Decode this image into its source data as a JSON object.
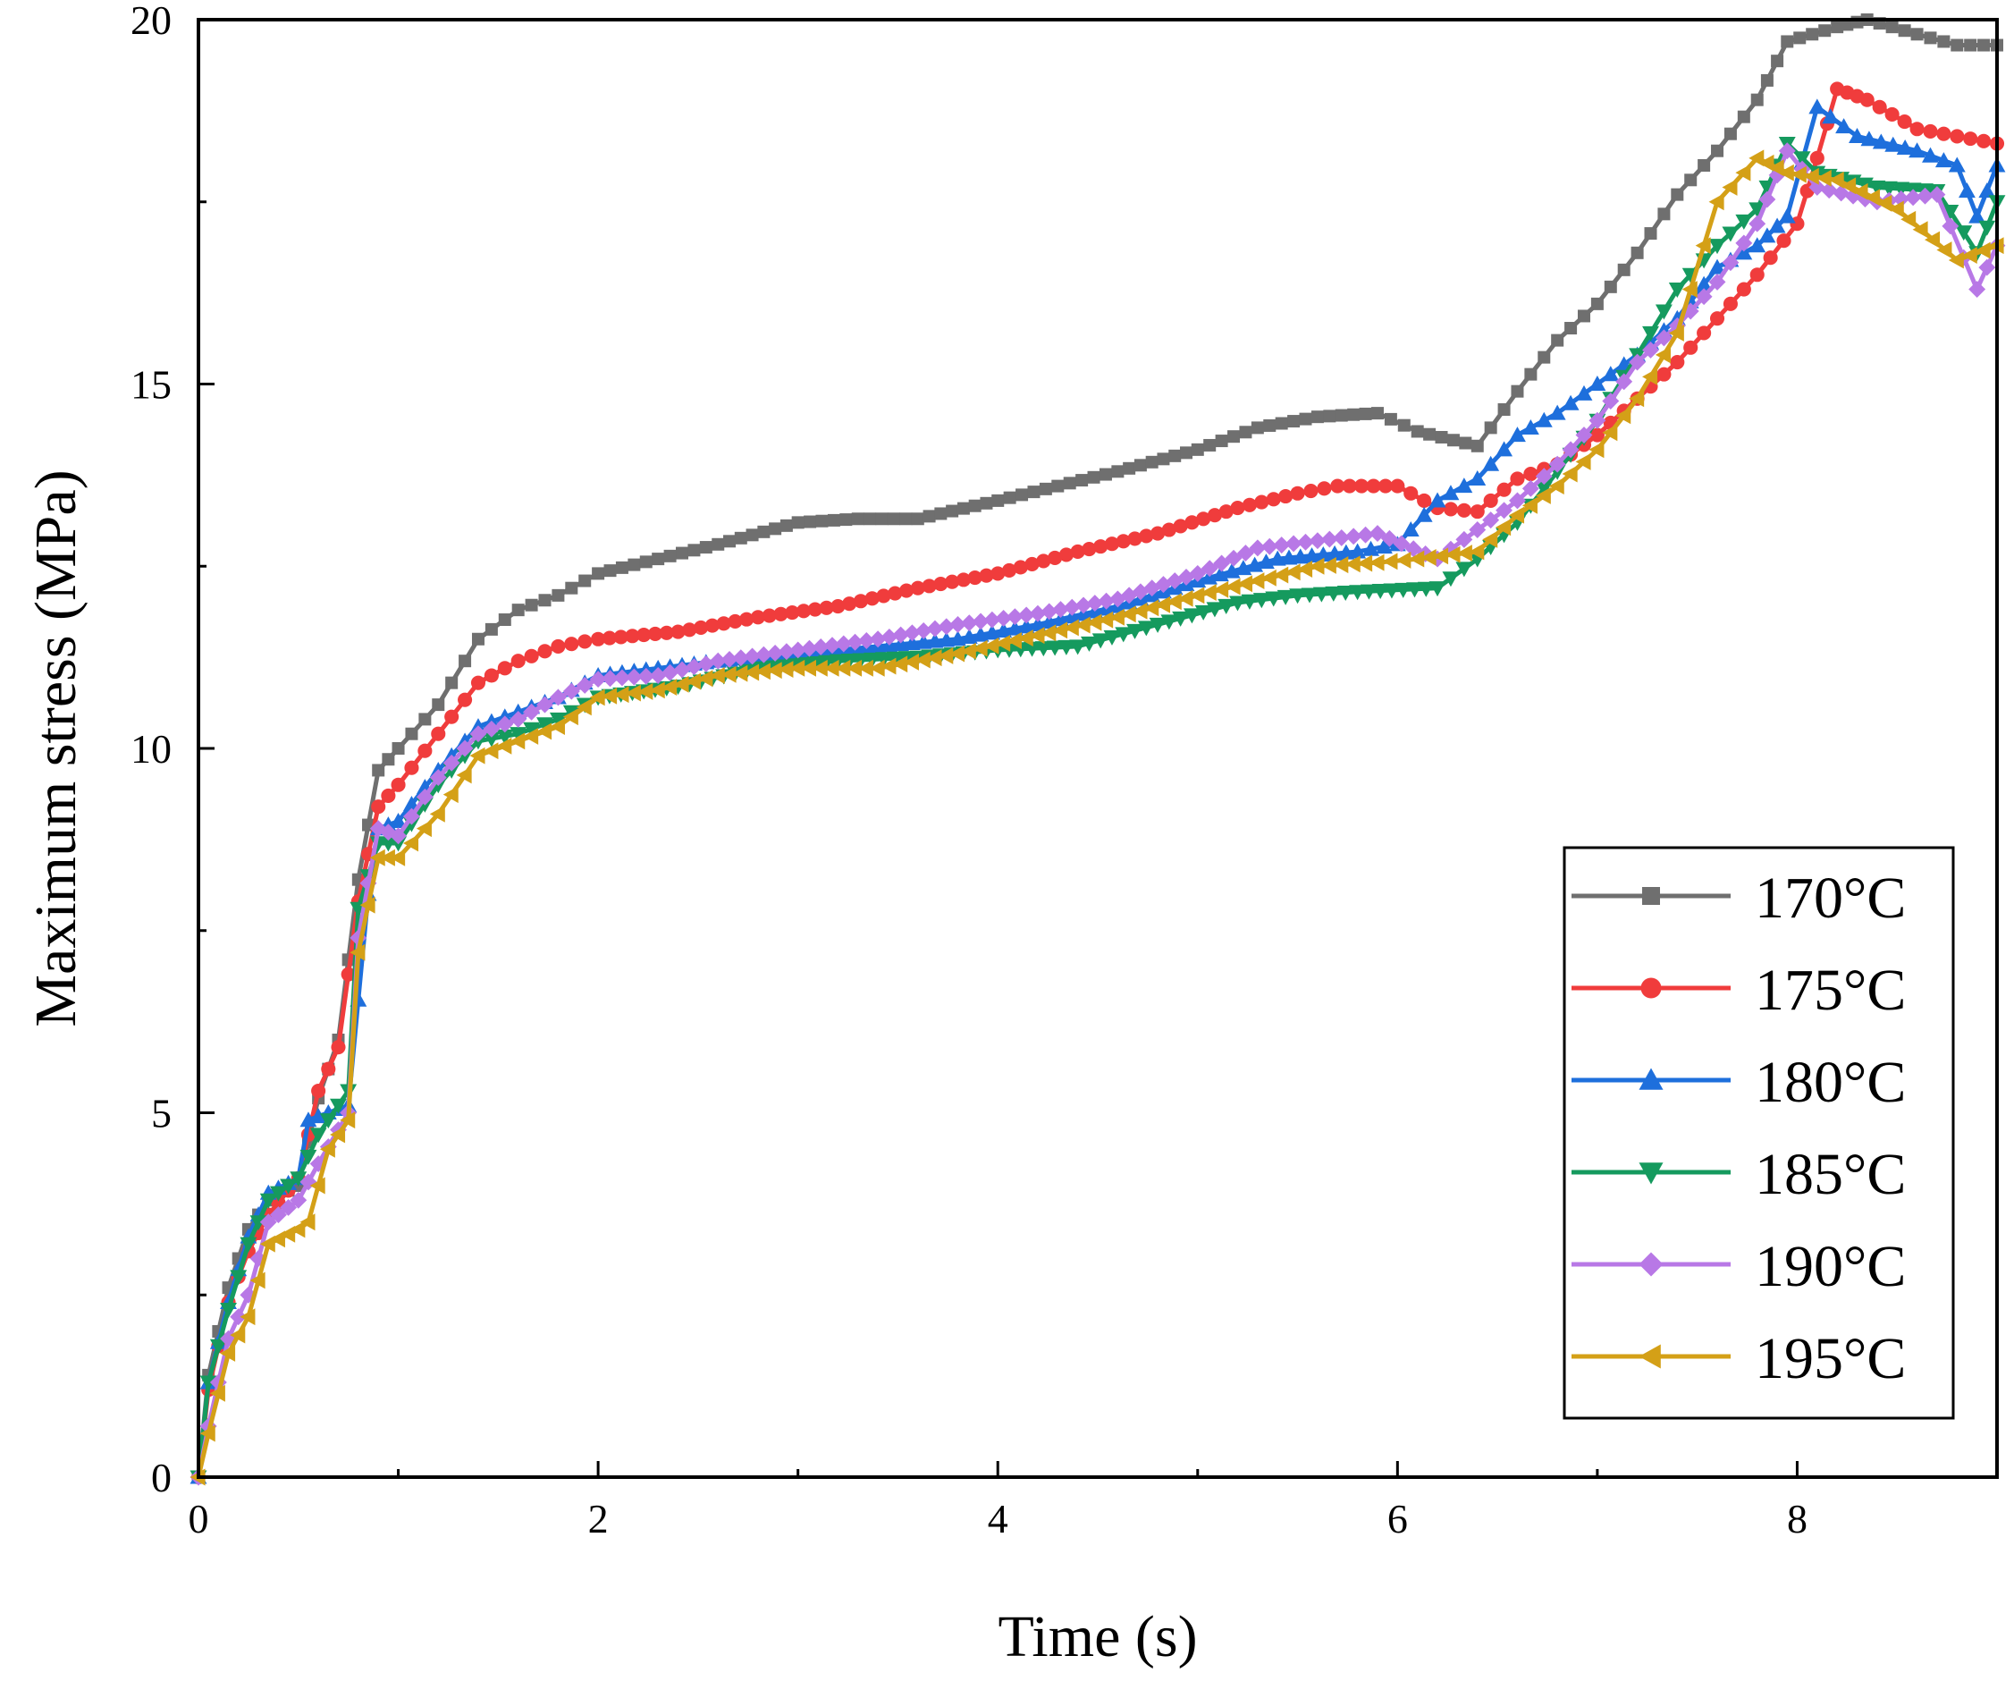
{
  "chart_data": {
    "type": "line",
    "xlabel": "Time (s)",
    "ylabel": "Maximum stress (MPa)",
    "xlim": [
      0,
      9
    ],
    "ylim": [
      0,
      20
    ],
    "xticks": [
      0,
      2,
      4,
      6,
      8
    ],
    "yticks": [
      0,
      5,
      10,
      15,
      20
    ],
    "grid": false,
    "legend_position": "bottom-right",
    "series": [
      {
        "name": "170°C",
        "color": "#6f6f6f",
        "marker": "square",
        "points": [
          [
            0,
            0
          ],
          [
            0.05,
            1.4
          ],
          [
            0.15,
            2.6
          ],
          [
            0.25,
            3.4
          ],
          [
            0.35,
            3.8
          ],
          [
            0.5,
            4.0
          ],
          [
            0.6,
            5.2
          ],
          [
            0.7,
            6.0
          ],
          [
            0.8,
            8.2
          ],
          [
            0.9,
            9.7
          ],
          [
            1.0,
            10.0
          ],
          [
            1.2,
            10.6
          ],
          [
            1.4,
            11.5
          ],
          [
            1.6,
            11.9
          ],
          [
            1.8,
            12.1
          ],
          [
            2.0,
            12.4
          ],
          [
            2.3,
            12.6
          ],
          [
            2.6,
            12.8
          ],
          [
            3.0,
            13.1
          ],
          [
            3.3,
            13.15
          ],
          [
            3.6,
            13.15
          ],
          [
            4.0,
            13.4
          ],
          [
            4.3,
            13.6
          ],
          [
            4.6,
            13.8
          ],
          [
            5.0,
            14.1
          ],
          [
            5.3,
            14.4
          ],
          [
            5.6,
            14.55
          ],
          [
            5.9,
            14.6
          ],
          [
            6.1,
            14.35
          ],
          [
            6.4,
            14.15
          ],
          [
            6.6,
            14.9
          ],
          [
            6.8,
            15.6
          ],
          [
            7.0,
            16.1
          ],
          [
            7.2,
            16.8
          ],
          [
            7.4,
            17.6
          ],
          [
            7.6,
            18.2
          ],
          [
            7.8,
            18.9
          ],
          [
            7.95,
            19.7
          ],
          [
            8.2,
            19.9
          ],
          [
            8.35,
            20.0
          ],
          [
            8.6,
            19.8
          ],
          [
            8.8,
            19.65
          ],
          [
            9.0,
            19.65
          ]
        ]
      },
      {
        "name": "175°C",
        "color": "#f03c3c",
        "marker": "circle",
        "points": [
          [
            0,
            0
          ],
          [
            0.05,
            1.2
          ],
          [
            0.15,
            2.4
          ],
          [
            0.25,
            3.1
          ],
          [
            0.35,
            3.6
          ],
          [
            0.5,
            4.1
          ],
          [
            0.6,
            5.3
          ],
          [
            0.7,
            5.9
          ],
          [
            0.8,
            7.9
          ],
          [
            0.9,
            9.2
          ],
          [
            1.0,
            9.5
          ],
          [
            1.2,
            10.2
          ],
          [
            1.4,
            10.9
          ],
          [
            1.6,
            11.2
          ],
          [
            1.8,
            11.4
          ],
          [
            2.0,
            11.5
          ],
          [
            2.4,
            11.6
          ],
          [
            2.8,
            11.8
          ],
          [
            3.2,
            11.95
          ],
          [
            3.6,
            12.2
          ],
          [
            4.0,
            12.4
          ],
          [
            4.4,
            12.7
          ],
          [
            4.8,
            12.95
          ],
          [
            5.2,
            13.3
          ],
          [
            5.5,
            13.5
          ],
          [
            5.7,
            13.6
          ],
          [
            6.0,
            13.6
          ],
          [
            6.2,
            13.3
          ],
          [
            6.4,
            13.25
          ],
          [
            6.6,
            13.7
          ],
          [
            6.8,
            13.9
          ],
          [
            7.0,
            14.3
          ],
          [
            7.2,
            14.8
          ],
          [
            7.4,
            15.3
          ],
          [
            7.6,
            15.9
          ],
          [
            7.8,
            16.5
          ],
          [
            8.0,
            17.2
          ],
          [
            8.1,
            18.1
          ],
          [
            8.2,
            19.05
          ],
          [
            8.35,
            18.9
          ],
          [
            8.6,
            18.5
          ],
          [
            8.8,
            18.4
          ],
          [
            9.0,
            18.3
          ]
        ]
      },
      {
        "name": "180°C",
        "color": "#1e6fdc",
        "marker": "triangle-up",
        "points": [
          [
            0,
            0
          ],
          [
            0.05,
            1.3
          ],
          [
            0.15,
            2.4
          ],
          [
            0.25,
            3.3
          ],
          [
            0.35,
            3.9
          ],
          [
            0.5,
            4.1
          ],
          [
            0.55,
            4.9
          ],
          [
            0.65,
            5.0
          ],
          [
            0.75,
            5.1
          ],
          [
            0.85,
            8.0
          ],
          [
            0.9,
            8.9
          ],
          [
            1.0,
            9.0
          ],
          [
            1.2,
            9.7
          ],
          [
            1.4,
            10.3
          ],
          [
            1.6,
            10.5
          ],
          [
            1.8,
            10.7
          ],
          [
            2.0,
            11.0
          ],
          [
            2.3,
            11.1
          ],
          [
            2.6,
            11.2
          ],
          [
            3.0,
            11.3
          ],
          [
            3.4,
            11.4
          ],
          [
            3.8,
            11.5
          ],
          [
            4.2,
            11.7
          ],
          [
            4.6,
            11.95
          ],
          [
            5.0,
            12.3
          ],
          [
            5.4,
            12.6
          ],
          [
            5.8,
            12.7
          ],
          [
            6.0,
            12.8
          ],
          [
            6.2,
            13.4
          ],
          [
            6.4,
            13.7
          ],
          [
            6.6,
            14.3
          ],
          [
            6.8,
            14.6
          ],
          [
            7.0,
            15.0
          ],
          [
            7.2,
            15.4
          ],
          [
            7.4,
            15.9
          ],
          [
            7.6,
            16.6
          ],
          [
            7.8,
            16.9
          ],
          [
            7.95,
            17.3
          ],
          [
            8.1,
            18.8
          ],
          [
            8.3,
            18.4
          ],
          [
            8.6,
            18.2
          ],
          [
            8.8,
            18.0
          ],
          [
            8.9,
            17.3
          ],
          [
            9.0,
            18.0
          ]
        ]
      },
      {
        "name": "185°C",
        "color": "#159a5e",
        "marker": "triangle-down",
        "points": [
          [
            0,
            0
          ],
          [
            0.05,
            1.3
          ],
          [
            0.15,
            2.3
          ],
          [
            0.25,
            3.2
          ],
          [
            0.35,
            3.8
          ],
          [
            0.5,
            4.1
          ],
          [
            0.6,
            4.7
          ],
          [
            0.75,
            5.3
          ],
          [
            0.8,
            7.8
          ],
          [
            0.9,
            8.7
          ],
          [
            1.0,
            8.7
          ],
          [
            1.2,
            9.5
          ],
          [
            1.4,
            10.1
          ],
          [
            1.6,
            10.2
          ],
          [
            1.8,
            10.4
          ],
          [
            2.0,
            10.7
          ],
          [
            2.4,
            10.85
          ],
          [
            2.8,
            11.1
          ],
          [
            3.2,
            11.2
          ],
          [
            3.6,
            11.25
          ],
          [
            4.0,
            11.35
          ],
          [
            4.4,
            11.4
          ],
          [
            4.8,
            11.7
          ],
          [
            5.2,
            12.0
          ],
          [
            5.5,
            12.1
          ],
          [
            5.8,
            12.15
          ],
          [
            6.2,
            12.2
          ],
          [
            6.4,
            12.6
          ],
          [
            6.6,
            13.1
          ],
          [
            6.8,
            13.8
          ],
          [
            7.0,
            14.5
          ],
          [
            7.2,
            15.4
          ],
          [
            7.4,
            16.3
          ],
          [
            7.6,
            16.9
          ],
          [
            7.8,
            17.4
          ],
          [
            7.95,
            18.3
          ],
          [
            8.1,
            17.9
          ],
          [
            8.4,
            17.7
          ],
          [
            8.7,
            17.65
          ],
          [
            8.9,
            16.8
          ],
          [
            9.0,
            17.5
          ]
        ]
      },
      {
        "name": "190°C",
        "color": "#b878e6",
        "marker": "diamond",
        "points": [
          [
            0,
            0
          ],
          [
            0.05,
            0.7
          ],
          [
            0.15,
            1.9
          ],
          [
            0.25,
            2.5
          ],
          [
            0.35,
            3.5
          ],
          [
            0.5,
            3.8
          ],
          [
            0.6,
            4.3
          ],
          [
            0.75,
            5.0
          ],
          [
            0.8,
            7.4
          ],
          [
            0.9,
            8.9
          ],
          [
            1.0,
            8.8
          ],
          [
            1.2,
            9.6
          ],
          [
            1.4,
            10.2
          ],
          [
            1.6,
            10.4
          ],
          [
            1.8,
            10.7
          ],
          [
            2.0,
            10.95
          ],
          [
            2.3,
            11.0
          ],
          [
            2.6,
            11.2
          ],
          [
            3.0,
            11.35
          ],
          [
            3.4,
            11.5
          ],
          [
            3.8,
            11.7
          ],
          [
            4.2,
            11.85
          ],
          [
            4.6,
            12.05
          ],
          [
            5.0,
            12.4
          ],
          [
            5.3,
            12.75
          ],
          [
            5.6,
            12.85
          ],
          [
            5.9,
            12.95
          ],
          [
            6.2,
            12.6
          ],
          [
            6.4,
            13.0
          ],
          [
            6.6,
            13.4
          ],
          [
            6.8,
            13.9
          ],
          [
            7.0,
            14.5
          ],
          [
            7.2,
            15.3
          ],
          [
            7.4,
            15.8
          ],
          [
            7.6,
            16.4
          ],
          [
            7.8,
            17.2
          ],
          [
            7.95,
            18.2
          ],
          [
            8.1,
            17.7
          ],
          [
            8.4,
            17.5
          ],
          [
            8.7,
            17.6
          ],
          [
            8.9,
            16.3
          ],
          [
            9.0,
            16.9
          ]
        ]
      },
      {
        "name": "195°C",
        "color": "#d4a017",
        "marker": "triangle-left",
        "points": [
          [
            0,
            0
          ],
          [
            0.05,
            0.6
          ],
          [
            0.15,
            1.7
          ],
          [
            0.25,
            2.2
          ],
          [
            0.35,
            3.2
          ],
          [
            0.5,
            3.4
          ],
          [
            0.55,
            3.5
          ],
          [
            0.65,
            4.5
          ],
          [
            0.75,
            4.9
          ],
          [
            0.8,
            7.2
          ],
          [
            0.9,
            8.5
          ],
          [
            1.0,
            8.5
          ],
          [
            1.2,
            9.1
          ],
          [
            1.4,
            9.9
          ],
          [
            1.6,
            10.1
          ],
          [
            1.8,
            10.3
          ],
          [
            2.0,
            10.7
          ],
          [
            2.3,
            10.8
          ],
          [
            2.6,
            11.0
          ],
          [
            3.0,
            11.1
          ],
          [
            3.4,
            11.1
          ],
          [
            3.8,
            11.3
          ],
          [
            4.2,
            11.55
          ],
          [
            4.6,
            11.8
          ],
          [
            5.0,
            12.1
          ],
          [
            5.3,
            12.3
          ],
          [
            5.6,
            12.5
          ],
          [
            5.9,
            12.55
          ],
          [
            6.1,
            12.6
          ],
          [
            6.4,
            12.7
          ],
          [
            6.6,
            13.2
          ],
          [
            6.8,
            13.6
          ],
          [
            7.0,
            14.1
          ],
          [
            7.2,
            14.8
          ],
          [
            7.4,
            15.7
          ],
          [
            7.6,
            17.5
          ],
          [
            7.8,
            18.1
          ],
          [
            7.95,
            17.9
          ],
          [
            8.2,
            17.8
          ],
          [
            8.5,
            17.4
          ],
          [
            8.8,
            16.7
          ],
          [
            9.0,
            16.9
          ]
        ]
      }
    ]
  }
}
